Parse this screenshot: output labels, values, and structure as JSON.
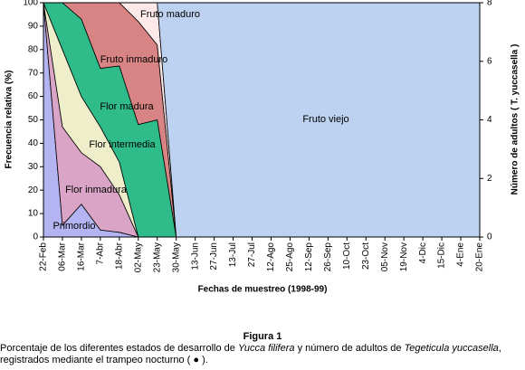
{
  "chart_data": {
    "type": "stacked_area",
    "ylabel": "Frecuencia relativa (%)",
    "y2label": "Número de adultos ( T. yuccasella )",
    "xlabel": "Fechas de muestreo (1998-99)",
    "categories": [
      "22-Feb",
      "06-Mar",
      "16-Mar",
      "7-Abr",
      "18-Abr",
      "02-May",
      "23-May",
      "30-May",
      "13-Jun",
      "27-Jun",
      "13-Jul",
      "27-Jul",
      "12-Ago",
      "25-Ago",
      "12-Sep",
      "26-Sep",
      "10-Oct",
      "23-Oct",
      "05-Nov",
      "19-Nov",
      "4-Dic",
      "15-Dic",
      "4-Ene",
      "20-Ene"
    ],
    "series": [
      {
        "name": "Primordio",
        "color": "#b4b4f2",
        "values": [
          100,
          5,
          14,
          3,
          2,
          0,
          0,
          0,
          0,
          0,
          0,
          0,
          0,
          0,
          0,
          0,
          0,
          0,
          0,
          0,
          0,
          0,
          0,
          0
        ]
      },
      {
        "name": "Flor inmadura",
        "color": "#daa4c6",
        "values": [
          0,
          42,
          22,
          27,
          16,
          0,
          0,
          0,
          0,
          0,
          0,
          0,
          0,
          0,
          0,
          0,
          0,
          0,
          0,
          0,
          0,
          0,
          0,
          0
        ]
      },
      {
        "name": "Flor intermedia",
        "color": "#eeeecb",
        "values": [
          0,
          33,
          24,
          17,
          14,
          0,
          0,
          0,
          0,
          0,
          0,
          0,
          0,
          0,
          0,
          0,
          0,
          0,
          0,
          0,
          0,
          0,
          0,
          0
        ]
      },
      {
        "name": "Flor madura",
        "color": "#2fbc8a",
        "values": [
          0,
          20,
          33,
          25,
          41,
          48,
          50,
          0,
          0,
          0,
          0,
          0,
          0,
          0,
          0,
          0,
          0,
          0,
          0,
          0,
          0,
          0,
          0,
          0
        ]
      },
      {
        "name": "Fruto inmaduro",
        "color": "#d88484",
        "values": [
          0,
          0,
          7,
          28,
          27,
          44,
          32,
          0,
          0,
          0,
          0,
          0,
          0,
          0,
          0,
          0,
          0,
          0,
          0,
          0,
          0,
          0,
          0,
          0
        ]
      },
      {
        "name": "Fruto maduro",
        "color": "#fde9ea",
        "values": [
          0,
          0,
          0,
          0,
          0,
          8,
          18,
          0,
          0,
          0,
          0,
          0,
          0,
          0,
          0,
          0,
          0,
          0,
          0,
          0,
          0,
          0,
          0,
          0
        ]
      },
      {
        "name": "Fruto viejo",
        "color": "#bcd2f0",
        "values": [
          0,
          0,
          0,
          0,
          0,
          0,
          0,
          100,
          100,
          100,
          100,
          100,
          100,
          100,
          100,
          100,
          100,
          100,
          100,
          100,
          100,
          100,
          100,
          100
        ]
      }
    ],
    "ylim": [
      0,
      100
    ],
    "yticks": [
      0,
      10,
      20,
      30,
      40,
      50,
      60,
      70,
      80,
      90,
      100
    ],
    "y2lim": [
      0,
      8
    ],
    "y2ticks": [
      0,
      2,
      4,
      6,
      8
    ]
  },
  "caption": {
    "figure": "Figura 1",
    "line1": [
      "Porcentaje de los diferentes estados de desarrollo de ",
      "Yucca filifera",
      " y número de adultos de ",
      "Tegeticula yuccasella",
      ","
    ],
    "line2": "registrados mediante el trampeo nocturno ( ● )."
  }
}
